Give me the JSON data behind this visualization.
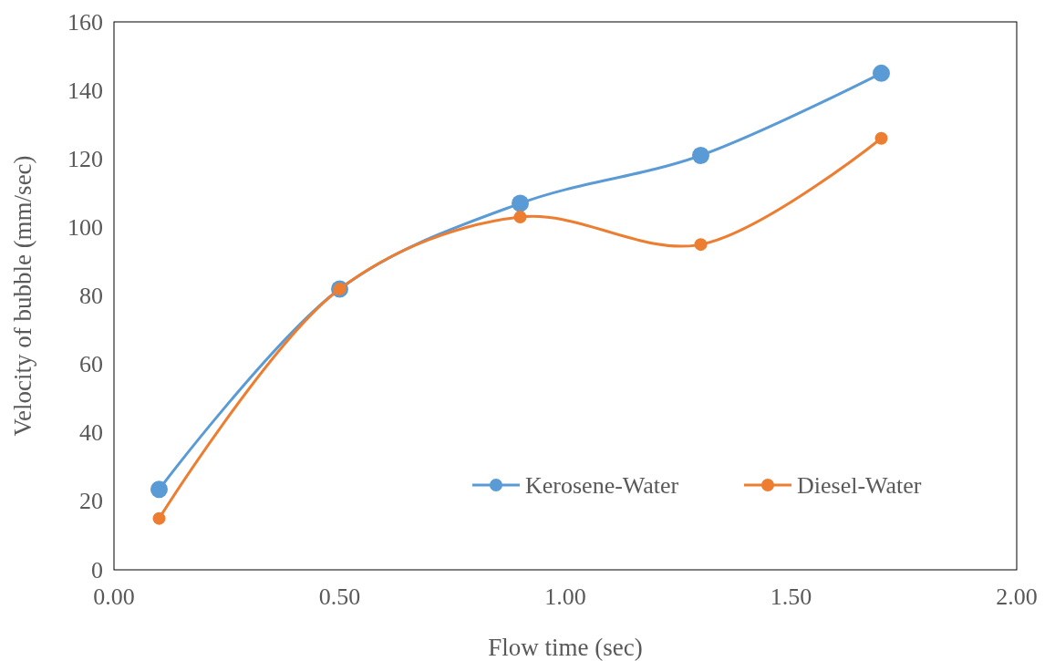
{
  "chart_data": {
    "type": "line",
    "xlabel": "Flow time (sec)",
    "ylabel": "Velocity of bubble (mm/sec)",
    "x": [
      0.1,
      0.5,
      0.9,
      1.3,
      1.7
    ],
    "series": [
      {
        "name": "Kerosene-Water",
        "color": "#5b9bd5",
        "values": [
          23.5,
          82,
          107,
          121,
          145
        ]
      },
      {
        "name": "Diesel-Water",
        "color": "#ed7d31",
        "values": [
          15,
          82,
          103,
          95,
          126
        ]
      }
    ],
    "xlim": [
      0,
      2
    ],
    "xticks": [
      {
        "value": 0,
        "label": "0.00"
      },
      {
        "value": 0.5,
        "label": "0.50"
      },
      {
        "value": 1,
        "label": "1.00"
      },
      {
        "value": 1.5,
        "label": "1.50"
      },
      {
        "value": 2,
        "label": "2.00"
      }
    ],
    "ylim": [
      0,
      160
    ],
    "yticks": [
      0,
      20,
      40,
      60,
      80,
      100,
      120,
      140,
      160
    ],
    "grid": false,
    "legend": "bottom right",
    "marker": "circle",
    "line_style": "solid"
  }
}
